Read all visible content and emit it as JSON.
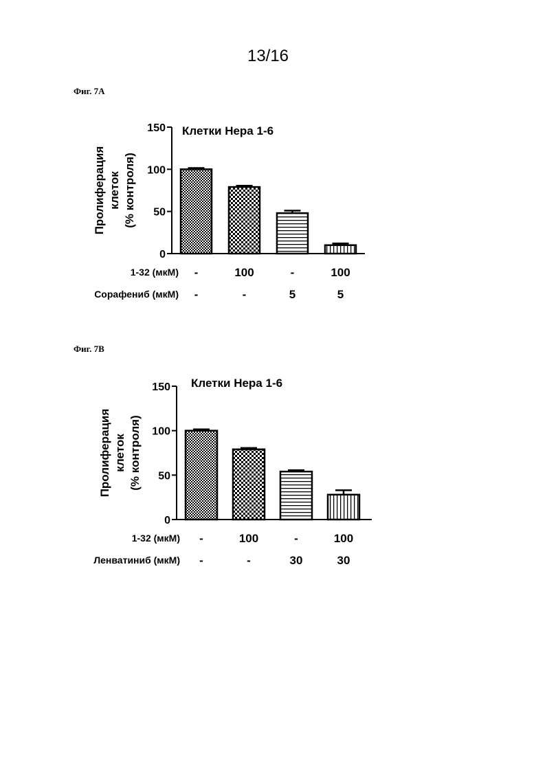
{
  "page_number": "13/16",
  "figures": [
    {
      "label": "Фиг. 7А"
    },
    {
      "label": "Фиг. 7В"
    }
  ],
  "chart_data": [
    {
      "type": "bar",
      "title": "Клетки Hepa 1-6",
      "ylabel_lines": [
        "Пролиферация",
        "клеток",
        "(% контроля)"
      ],
      "ylim": [
        0,
        150
      ],
      "yticks": [
        0,
        50,
        100,
        150
      ],
      "values": [
        100,
        79,
        48,
        10
      ],
      "errors": [
        1.5,
        1.5,
        3,
        2
      ],
      "patterns": [
        "dense-check",
        "check",
        "horizontal",
        "vertical"
      ],
      "conditions": [
        {
          "label": "1-32 (мкМ)",
          "values": [
            "-",
            "100",
            "-",
            "100"
          ]
        },
        {
          "label": "Сорафениб (мкМ)",
          "values": [
            "-",
            "-",
            "5",
            "5"
          ]
        }
      ]
    },
    {
      "type": "bar",
      "title": "Клетки Hepa 1-6",
      "ylabel_lines": [
        "Пролиферация",
        "клеток",
        "(% контроля)"
      ],
      "ylim": [
        0,
        150
      ],
      "yticks": [
        0,
        50,
        100,
        150
      ],
      "values": [
        100,
        79,
        54,
        28
      ],
      "errors": [
        1.5,
        1.5,
        1.5,
        5
      ],
      "patterns": [
        "dense-check",
        "check",
        "horizontal",
        "vertical"
      ],
      "conditions": [
        {
          "label": "1-32 (мкМ)",
          "values": [
            "-",
            "100",
            "-",
            "100"
          ]
        },
        {
          "label": "Ленватиниб (мкМ)",
          "values": [
            "-",
            "-",
            "30",
            "30"
          ]
        }
      ]
    }
  ]
}
